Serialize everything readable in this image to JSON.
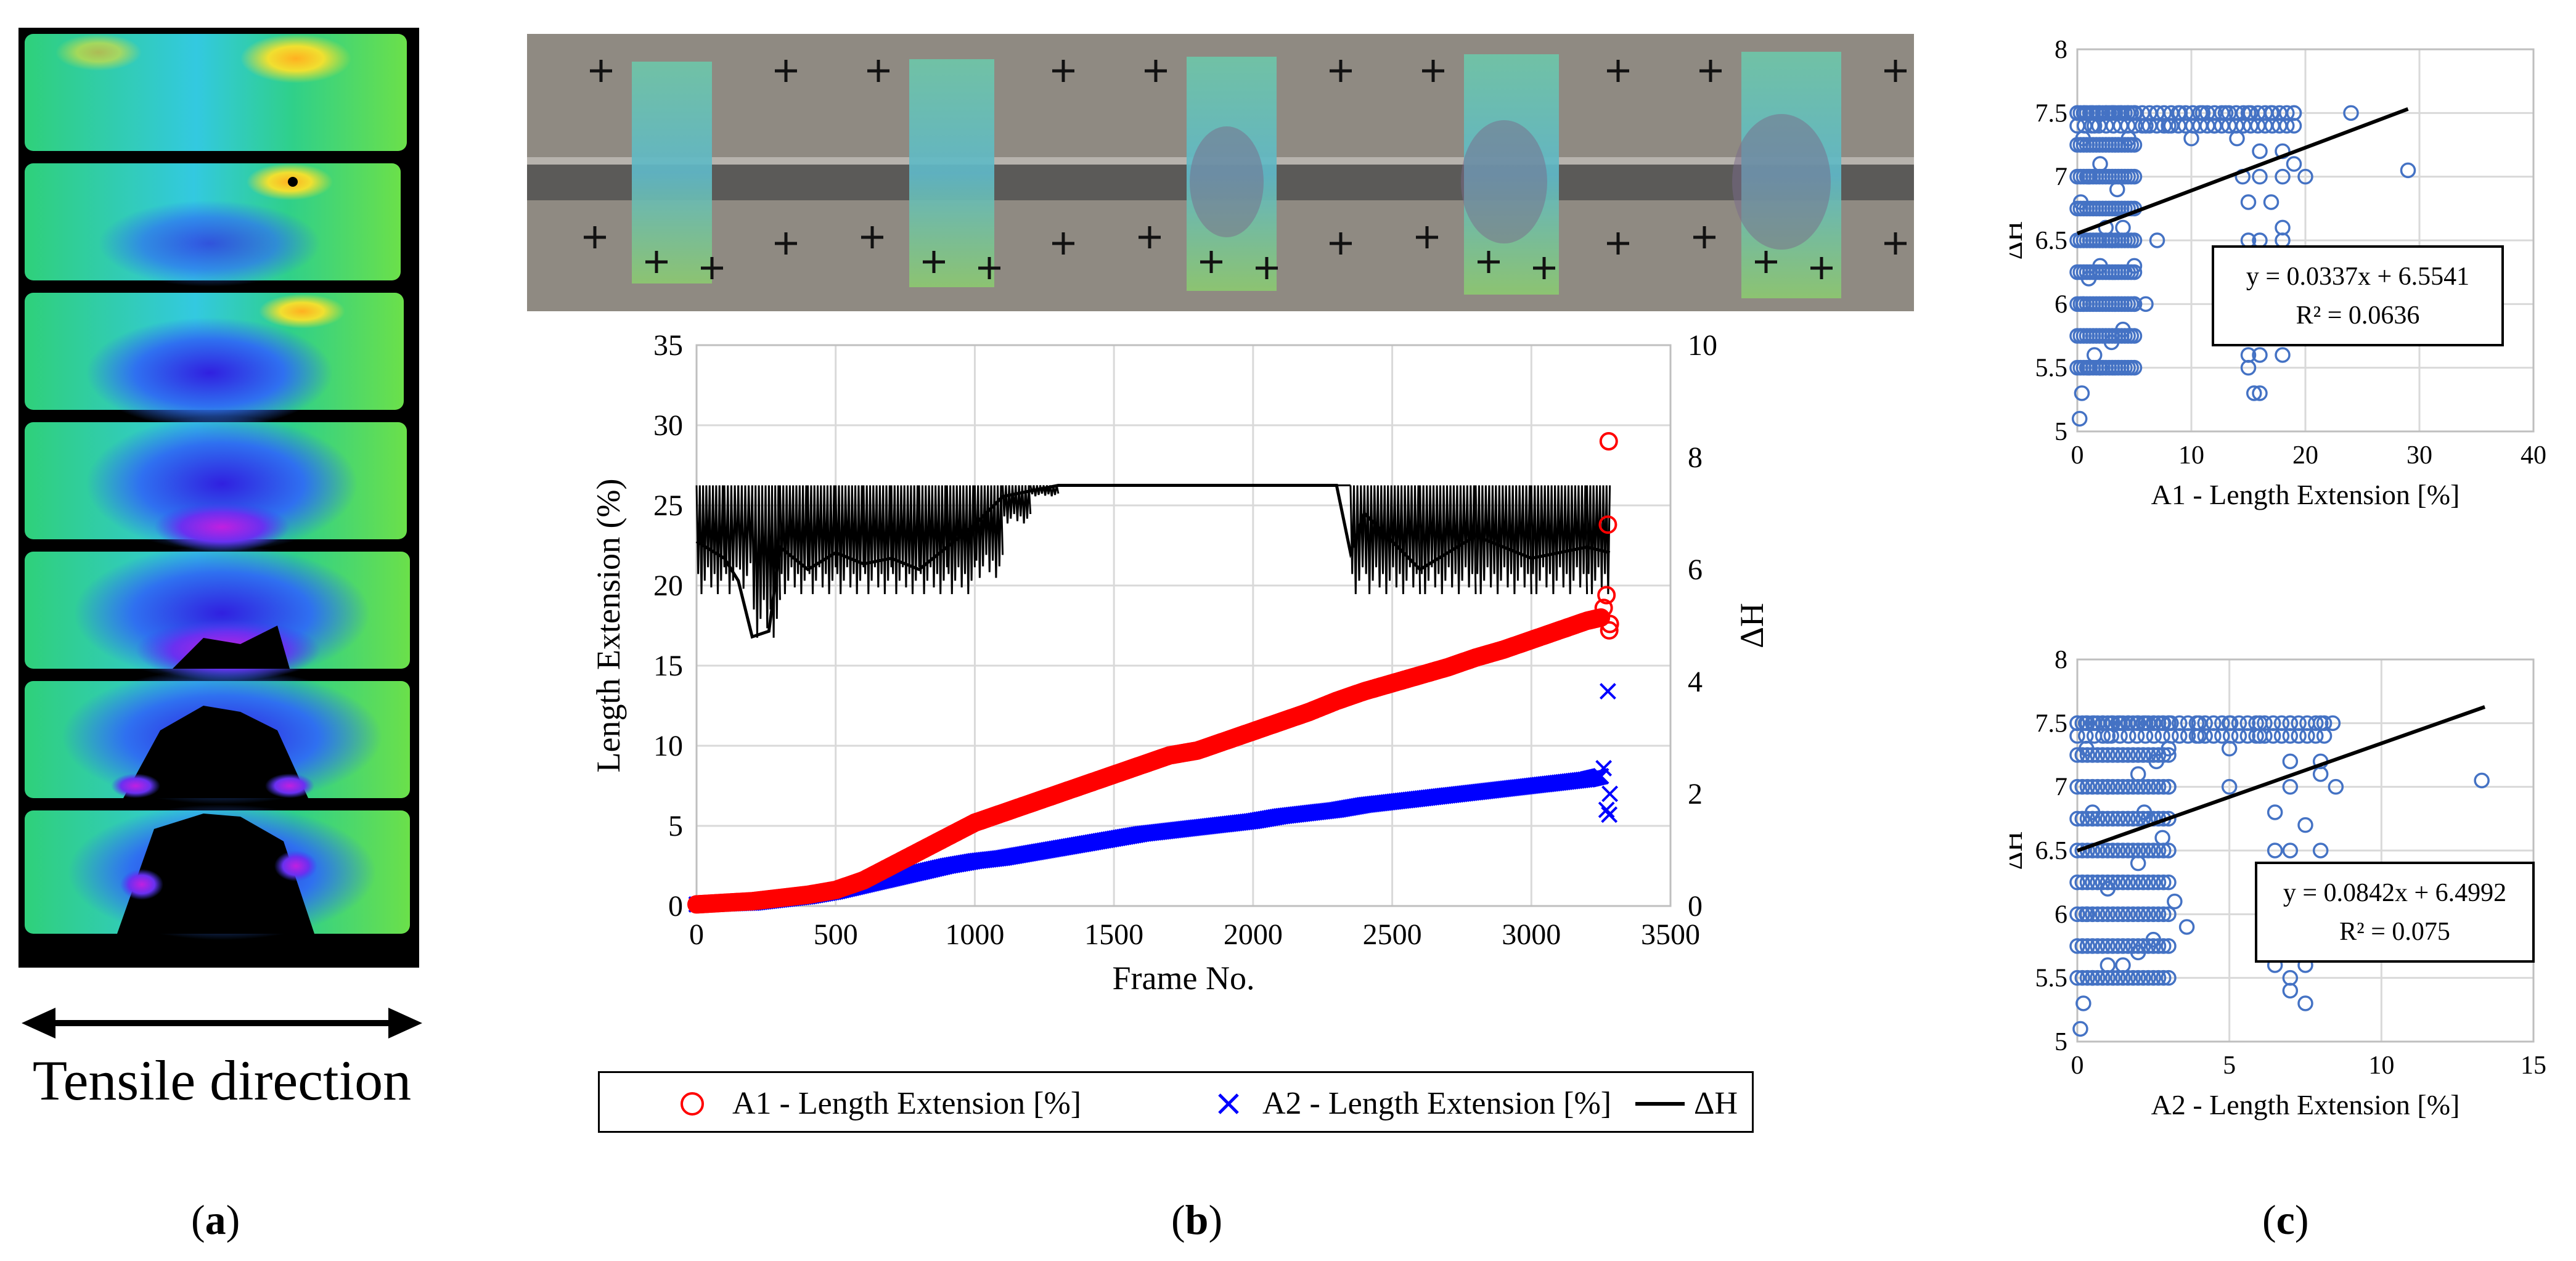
{
  "panel_a": {
    "caption_label": "a",
    "direction_label": "Tensile direction",
    "strip_count": 7
  },
  "panel_b": {
    "caption_label": "b",
    "photo_frame_count": 5
  },
  "panel_c": {
    "caption_label": "c"
  },
  "colors": {
    "a1": "#ff0000",
    "a2": "#0000ff",
    "dh": "#000000",
    "scatter": "#4472c4",
    "grid": "#d9d9d9"
  },
  "chart_data": [
    {
      "id": "main",
      "type": "scatter",
      "title": "",
      "xlabel": "Frame No.",
      "ylabel": "Length Extension (%)",
      "y2label": "ΔH",
      "xlim": [
        0,
        3500
      ],
      "ylim": [
        0,
        35
      ],
      "y2lim": [
        0,
        10
      ],
      "xticks": [
        0,
        500,
        1000,
        1500,
        2000,
        2500,
        3000,
        3500
      ],
      "yticks": [
        0,
        5,
        10,
        15,
        20,
        25,
        30,
        35
      ],
      "y2ticks": [
        0,
        2,
        4,
        6,
        8,
        10
      ],
      "grid": true,
      "legend_position": "bottom",
      "series": [
        {
          "name": "A1 - Length Extension [%]",
          "marker": "circle",
          "x": [
            0,
            100,
            200,
            300,
            400,
            500,
            600,
            700,
            800,
            900,
            1000,
            1100,
            1200,
            1300,
            1400,
            1500,
            1600,
            1700,
            1800,
            1900,
            2000,
            2100,
            2200,
            2300,
            2400,
            2500,
            2600,
            2700,
            2800,
            2900,
            3000,
            3100,
            3200,
            3250,
            3260,
            3270,
            3275,
            3278,
            3280,
            3282
          ],
          "y": [
            0.1,
            0.2,
            0.3,
            0.5,
            0.7,
            1.0,
            1.6,
            2.5,
            3.4,
            4.3,
            5.2,
            5.8,
            6.4,
            7.0,
            7.6,
            8.2,
            8.8,
            9.4,
            9.7,
            10.3,
            10.9,
            11.5,
            12.1,
            12.8,
            13.4,
            13.9,
            14.4,
            14.9,
            15.5,
            16.0,
            16.6,
            17.2,
            17.8,
            18.0,
            18.6,
            19.4,
            23.8,
            29.0,
            17.2,
            17.6
          ]
        },
        {
          "name": "A2 - Length Extension [%]",
          "marker": "x",
          "x": [
            0,
            100,
            200,
            300,
            400,
            500,
            600,
            700,
            800,
            900,
            1000,
            1100,
            1200,
            1300,
            1400,
            1500,
            1600,
            1700,
            1800,
            1900,
            2000,
            2100,
            2200,
            2300,
            2400,
            2500,
            2600,
            2700,
            2800,
            2900,
            3000,
            3100,
            3200,
            3250,
            3260,
            3270,
            3275,
            3280,
            3282
          ],
          "y": [
            0.1,
            0.15,
            0.2,
            0.4,
            0.6,
            0.9,
            1.3,
            1.7,
            2.1,
            2.5,
            2.8,
            3.0,
            3.3,
            3.6,
            3.9,
            4.2,
            4.5,
            4.7,
            4.9,
            5.1,
            5.3,
            5.6,
            5.8,
            6.0,
            6.3,
            6.5,
            6.7,
            6.9,
            7.1,
            7.3,
            7.5,
            7.7,
            7.9,
            8.1,
            8.6,
            6.0,
            13.4,
            5.7,
            7.0
          ]
        },
        {
          "name": "ΔH",
          "axis": "y2",
          "x": [
            0,
            100,
            150,
            200,
            260,
            300,
            400,
            500,
            600,
            700,
            800,
            900,
            1000,
            1100,
            1200,
            1300,
            1500,
            2000,
            2300,
            2350,
            2400,
            2600,
            2800,
            3000,
            3200,
            3282
          ],
          "y": [
            6.5,
            6.2,
            5.8,
            4.8,
            4.9,
            6.4,
            6.0,
            6.3,
            6.1,
            6.2,
            6.0,
            6.4,
            6.8,
            7.3,
            7.4,
            7.5,
            7.5,
            7.5,
            7.5,
            6.3,
            7.0,
            6.0,
            6.6,
            6.2,
            6.4,
            6.3
          ],
          "y_high": [
            7.5,
            7.5,
            7.5,
            7.5,
            7.5,
            7.5,
            7.5,
            7.5,
            7.5,
            7.5,
            7.5,
            7.5,
            7.5,
            7.5,
            7.5,
            7.5,
            7.5,
            7.5,
            7.5,
            7.5,
            7.5,
            7.5,
            7.5,
            7.5,
            7.5,
            7.5
          ],
          "y_low": [
            5.5,
            5.5,
            5.6,
            4.7,
            4.7,
            5.5,
            5.5,
            5.5,
            5.5,
            5.5,
            5.5,
            5.5,
            5.8,
            6.8,
            7.3,
            7.5,
            7.5,
            7.5,
            7.5,
            5.5,
            5.5,
            5.5,
            5.5,
            5.5,
            5.5,
            5.5
          ]
        }
      ]
    },
    {
      "id": "c1",
      "type": "scatter",
      "xlabel": "A1 - Length Extension [%]",
      "ylabel": "ΔH",
      "xlim": [
        0,
        40
      ],
      "ylim": [
        5,
        8
      ],
      "xticks": [
        0,
        10,
        20,
        30,
        40
      ],
      "yticks": [
        5,
        5.5,
        6,
        6.5,
        7,
        7.5,
        8
      ],
      "grid": true,
      "trendline": {
        "slope": 0.0337,
        "intercept": 6.5541,
        "x_end": 29
      },
      "equation": "y = 0.0337x + 6.5541",
      "r2": "R² = 0.0636",
      "points": [
        [
          0.2,
          5.1
        ],
        [
          0.4,
          5.3
        ],
        [
          1,
          5.5
        ],
        [
          1.5,
          5.6
        ],
        [
          2,
          5.5
        ],
        [
          3,
          5.7
        ],
        [
          4,
          5.8
        ],
        [
          5,
          6.0
        ],
        [
          0.5,
          6.0
        ],
        [
          1,
          6.2
        ],
        [
          2,
          6.3
        ],
        [
          3,
          6.5
        ],
        [
          4,
          6.6
        ],
        [
          0.3,
          6.8
        ],
        [
          1,
          7.0
        ],
        [
          2,
          7.1
        ],
        [
          0.5,
          7.3
        ],
        [
          1.5,
          7.4
        ],
        [
          3,
          7.5
        ],
        [
          5,
          7.5
        ],
        [
          7,
          7.5
        ],
        [
          9,
          7.5
        ],
        [
          11,
          7.5
        ],
        [
          13,
          7.5
        ],
        [
          15,
          7.5
        ],
        [
          17,
          7.5
        ],
        [
          19,
          7.5
        ],
        [
          4.5,
          7.3
        ],
        [
          6,
          7.4
        ],
        [
          8,
          7.4
        ],
        [
          10,
          7.3
        ],
        [
          12,
          7.4
        ],
        [
          14,
          7.3
        ],
        [
          16,
          7.2
        ],
        [
          18,
          7.2
        ],
        [
          14.5,
          7.0
        ],
        [
          16,
          7.0
        ],
        [
          18,
          7.0
        ],
        [
          19,
          7.1
        ],
        [
          20,
          7.0
        ],
        [
          15,
          6.8
        ],
        [
          17,
          6.8
        ],
        [
          18,
          6.6
        ],
        [
          15,
          6.5
        ],
        [
          16,
          6.5
        ],
        [
          18,
          6.5
        ],
        [
          15,
          6.3
        ],
        [
          16,
          6.3
        ],
        [
          18,
          6.2
        ],
        [
          15,
          6.0
        ],
        [
          16,
          6.0
        ],
        [
          18,
          6.0
        ],
        [
          15,
          5.8
        ],
        [
          17,
          5.8
        ],
        [
          15,
          5.6
        ],
        [
          16,
          5.6
        ],
        [
          18,
          5.6
        ],
        [
          15,
          5.5
        ],
        [
          15.5,
          5.3
        ],
        [
          16,
          5.3
        ],
        [
          24,
          7.5
        ],
        [
          29,
          7.05
        ],
        [
          6,
          6.0
        ],
        [
          7,
          6.5
        ],
        [
          5,
          6.3
        ],
        [
          3.5,
          6.9
        ],
        [
          2.5,
          6.6
        ]
      ]
    },
    {
      "id": "c2",
      "type": "scatter",
      "xlabel": "A2 - Length Extension [%]",
      "ylabel": "ΔH",
      "xlim": [
        0,
        15
      ],
      "ylim": [
        5,
        8
      ],
      "xticks": [
        0,
        5,
        10,
        15
      ],
      "yticks": [
        5,
        5.5,
        6,
        6.5,
        7,
        7.5,
        8
      ],
      "grid": true,
      "trendline": {
        "slope": 0.0842,
        "intercept": 6.4992,
        "x_end": 13.4
      },
      "equation": "y = 0.0842x + 6.4992",
      "r2": "R² = 0.075",
      "points": [
        [
          0.1,
          5.1
        ],
        [
          0.2,
          5.3
        ],
        [
          0.5,
          5.5
        ],
        [
          1,
          5.6
        ],
        [
          1.5,
          5.6
        ],
        [
          2,
          5.7
        ],
        [
          2.5,
          5.8
        ],
        [
          0.3,
          6.0
        ],
        [
          1,
          6.2
        ],
        [
          2,
          6.4
        ],
        [
          0.5,
          6.8
        ],
        [
          1,
          7.0
        ],
        [
          2,
          7.1
        ],
        [
          0.3,
          7.3
        ],
        [
          1,
          7.4
        ],
        [
          2,
          7.5
        ],
        [
          3,
          7.5
        ],
        [
          4,
          7.5
        ],
        [
          5,
          7.5
        ],
        [
          6,
          7.5
        ],
        [
          7,
          7.5
        ],
        [
          8,
          7.5
        ],
        [
          8.4,
          7.5
        ],
        [
          3,
          7.3
        ],
        [
          4,
          7.4
        ],
        [
          5,
          7.3
        ],
        [
          6,
          7.4
        ],
        [
          7,
          7.2
        ],
        [
          8,
          7.2
        ],
        [
          3,
          7.0
        ],
        [
          5,
          7.0
        ],
        [
          7,
          7.0
        ],
        [
          8,
          7.1
        ],
        [
          8.5,
          7.0
        ],
        [
          6.5,
          6.8
        ],
        [
          7.5,
          6.7
        ],
        [
          6.5,
          6.5
        ],
        [
          7,
          6.5
        ],
        [
          8,
          6.5
        ],
        [
          6.5,
          6.3
        ],
        [
          7.5,
          6.3
        ],
        [
          6.5,
          6.0
        ],
        [
          7,
          6.0
        ],
        [
          8,
          6.0
        ],
        [
          6.5,
          5.8
        ],
        [
          7.5,
          5.8
        ],
        [
          6.5,
          5.6
        ],
        [
          7.5,
          5.6
        ],
        [
          7,
          5.5
        ],
        [
          7,
          5.4
        ],
        [
          7.5,
          5.3
        ],
        [
          13.3,
          7.05
        ],
        [
          2.8,
          6.6
        ],
        [
          3.2,
          6.1
        ],
        [
          2.2,
          6.8
        ],
        [
          3.6,
          5.9
        ],
        [
          2.6,
          7.2
        ]
      ]
    }
  ]
}
